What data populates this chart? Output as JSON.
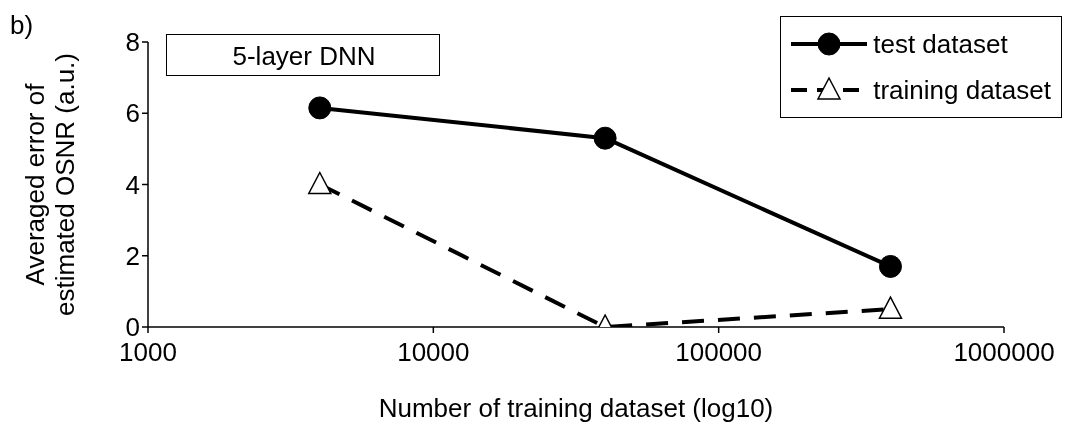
{
  "chart_data": {
    "type": "line",
    "xlabel": "Number of training dataset (log10)",
    "ylabel": "Averaged  error  of\nestimated OSNR (a.u.)",
    "log": "x",
    "xlim": [
      1000,
      1000000
    ],
    "xticks": [
      1000,
      10000,
      100000,
      1000000
    ],
    "ylim": [
      0,
      8
    ],
    "yticks": [
      0,
      2,
      4,
      6,
      8
    ],
    "grid": false,
    "legend": "top right",
    "annotations": [
      "b)",
      {
        "text": "5-layer DNN"
      }
    ],
    "series": [
      {
        "name": "test dataset",
        "color": "#000000",
        "marker": "circle",
        "line_style": "solid",
        "x": [
          4000,
          40000,
          400000
        ],
        "values": [
          6.15,
          5.3,
          1.7
        ]
      },
      {
        "name": "training dataset",
        "color": "#000000",
        "marker": "triangle",
        "line_style": "dashed",
        "x": [
          4000,
          40000,
          400000
        ],
        "values": [
          4.0,
          0.0,
          0.5
        ]
      }
    ]
  }
}
